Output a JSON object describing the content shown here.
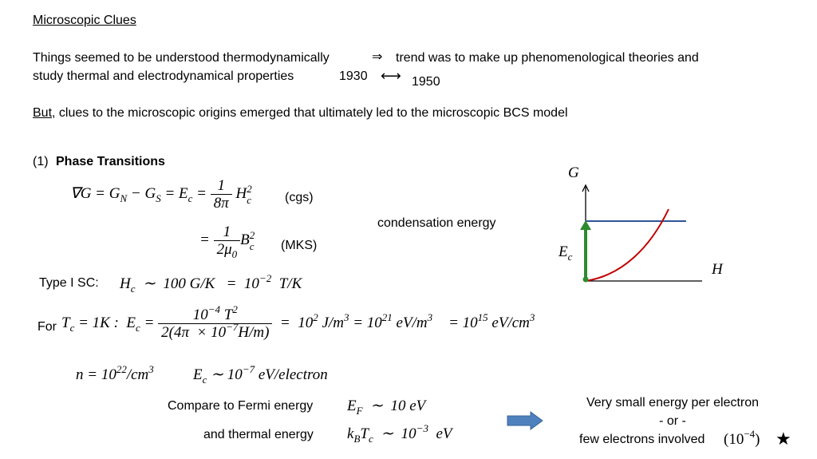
{
  "title": "Microscopic Clues",
  "intro": {
    "line1": "Things seemed to be understood thermodynamically",
    "implies": "⇒",
    "line1b": "trend was to make up phenomenological theories and",
    "line2": "study thermal and electrodynamical properties",
    "year_start": "1930",
    "between": "⟷",
    "year_end": "1950"
  },
  "but": {
    "underlined": "But",
    "rest": ", clues to the microscopic origins emerged that ultimately led to the microscopic BCS model"
  },
  "section": {
    "number": "(1)",
    "heading": "Phase Transitions"
  },
  "eq1": [
    "∇G = G",
    "N",
    " − G",
    "S",
    " = E",
    "c",
    " = ",
    "1",
    "8π",
    " H",
    "c",
    "2"
  ],
  "unit1": "(cgs)",
  "eq2": [
    "= ",
    "1",
    "2μ",
    "0",
    "B",
    "c",
    "2"
  ],
  "unit2": "(MKS)",
  "condensation": "condensation energy",
  "type1": {
    "label": "Type I SC:",
    "eq": [
      "H",
      "c",
      "  ∼  100 G/K   =  10",
      "−2",
      "  T/K"
    ]
  },
  "for_line": {
    "label": "For ",
    "eq": [
      "T",
      "c",
      " = 1K :  E",
      "c",
      " = ",
      "10",
      "−4",
      " T",
      "2",
      "2(4π  × 10",
      "−7",
      "H/m)",
      "  =  10",
      "2",
      " J/m",
      "3",
      " = 10",
      "21",
      " eV/m",
      "3",
      "= 10",
      "15",
      " eV/cm",
      "3"
    ]
  },
  "density": [
    "n = 10",
    "22",
    "/cm",
    "3"
  ],
  "per_electron": [
    "E",
    "c",
    " ∼ 10",
    "−7",
    " eV/electron"
  ],
  "compare": {
    "label": "Compare to Fermi energy",
    "eq": [
      "E",
      "F",
      "  ∼  10 eV"
    ]
  },
  "thermal": {
    "label": "and thermal energy",
    "eq": [
      "k",
      "B",
      "T",
      "c",
      "  ∼  10",
      "−3",
      "  eV"
    ]
  },
  "conclusion": {
    "line1": "Very small energy per electron",
    "line2": "- or -",
    "line3": "few electrons involved",
    "paren": [
      "(10",
      "−4",
      ")"
    ],
    "star": "★"
  },
  "diagram": {
    "y_axis": "G",
    "x_axis": "H",
    "gap": [
      "E",
      "c"
    ]
  }
}
